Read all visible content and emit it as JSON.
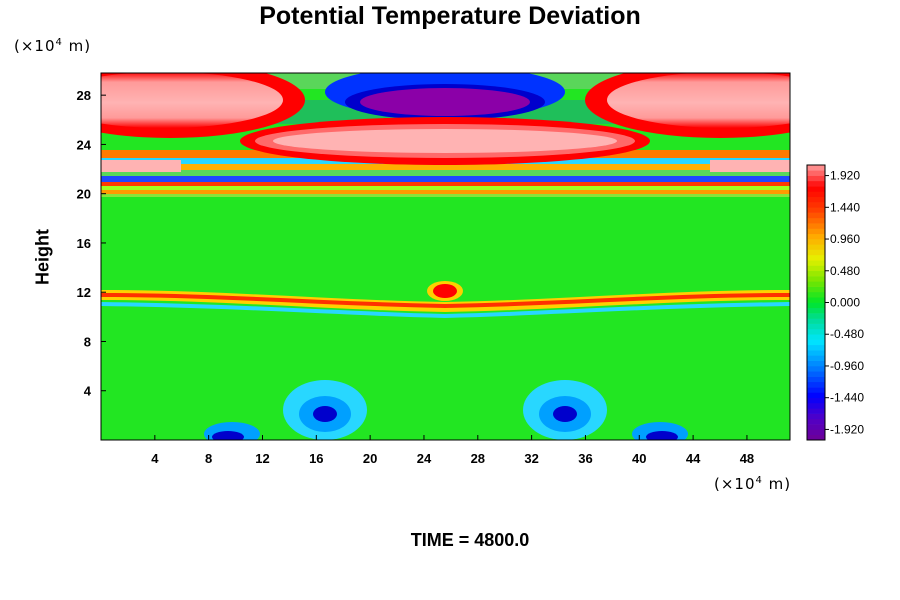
{
  "chart_data": {
    "type": "heatmap",
    "title": "Potential Temperature Deviation",
    "ylabel": "Height",
    "x_unit": {
      "prefix": "(×10",
      "exp": "4",
      "suffix": " m)"
    },
    "y_unit": {
      "prefix": "(×10",
      "exp": "4",
      "suffix": " m)"
    },
    "xlim": [
      0,
      51.2
    ],
    "ylim": [
      0,
      29.8
    ],
    "x_ticks": [
      "4",
      "8",
      "12",
      "16",
      "20",
      "24",
      "28",
      "32",
      "36",
      "40",
      "44",
      "48"
    ],
    "y_ticks": [
      "4",
      "8",
      "12",
      "16",
      "20",
      "24",
      "28"
    ],
    "colorbar": {
      "min": -2.08,
      "max": 2.08,
      "step": 0.08,
      "labels": [
        "1.920",
        "1.440",
        "0.960",
        "0.480",
        "0.000",
        "-0.480",
        "-0.960",
        "-1.440",
        "-1.920"
      ],
      "label_values": [
        1.92,
        1.44,
        0.96,
        0.48,
        0.0,
        -0.48,
        -0.96,
        -1.44,
        -1.92
      ]
    },
    "features": [
      {
        "x": 6.0,
        "y": 27.0,
        "value": 2.0
      },
      {
        "x": 45.5,
        "y": 27.0,
        "value": 2.0
      },
      {
        "x": 25.6,
        "y": 27.8,
        "value": -2.0
      },
      {
        "x": 25.6,
        "y": 24.5,
        "value": 2.0
      },
      {
        "x": 25.6,
        "y": 12.2,
        "value": 1.6
      },
      {
        "x": 16.5,
        "y": 2.2,
        "value": -1.7
      },
      {
        "x": 34.5,
        "y": 2.2,
        "value": -1.7
      },
      {
        "x": 10.0,
        "y": 0.3,
        "value": -1.9
      },
      {
        "x": 41.0,
        "y": 0.3,
        "value": -1.9
      }
    ]
  },
  "footer": {
    "label": "TIME = 4800.0"
  }
}
